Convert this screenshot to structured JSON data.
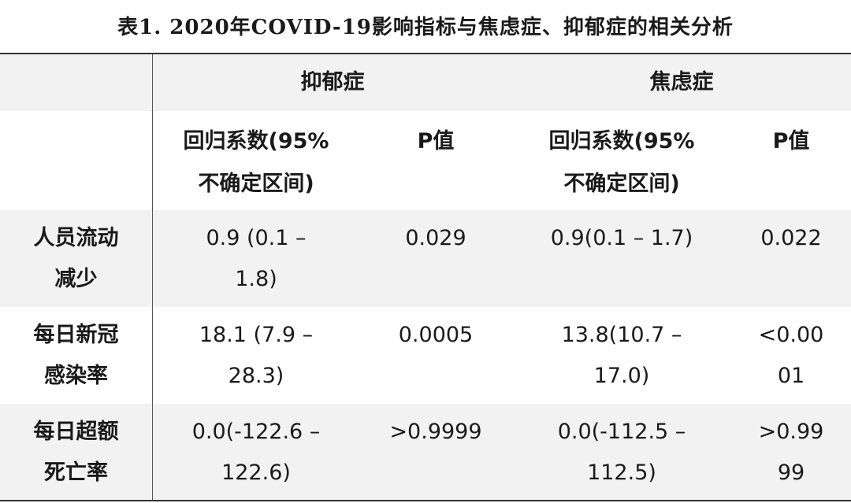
{
  "title": "表1. 2020年COVID-19影响指标与焦虑症、抑郁症的相关分析",
  "group_headers": {
    "depression": "抑郁症",
    "anxiety": "焦虑症"
  },
  "sub_headers": {
    "coef": "回归系数(95%\n不确定区间)",
    "p": "P值"
  },
  "rows": [
    {
      "label": "人员流动\n减少",
      "dep_coef": "0.9 (0.1 –\n1.8)",
      "dep_p": "0.029",
      "anx_coef": "0.9(0.1 – 1.7)",
      "anx_p": "0.022"
    },
    {
      "label": "每日新冠\n感染率",
      "dep_coef": "18.1 (7.9 –\n28.3)",
      "dep_p": "0.0005",
      "anx_coef": "13.8(10.7 –\n17.0)",
      "anx_p": "<0.00\n01"
    },
    {
      "label": "每日超额\n死亡率",
      "dep_coef": "0.0(-122.6 –\n122.6)",
      "dep_p": ">0.9999",
      "anx_coef": "0.0(-112.5 –\n112.5)",
      "anx_p": ">0.99\n99"
    }
  ],
  "colors": {
    "band_gray": "#f2f2f2",
    "rule": "#333333",
    "text": "#1a1a1a"
  }
}
